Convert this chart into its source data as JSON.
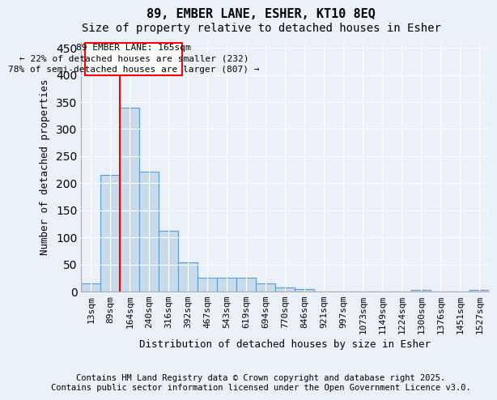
{
  "title": "89, EMBER LANE, ESHER, KT10 8EQ",
  "subtitle": "Size of property relative to detached houses in Esher",
  "xlabel": "Distribution of detached houses by size in Esher",
  "ylabel": "Number of detached properties",
  "categories": [
    "13sqm",
    "89sqm",
    "164sqm",
    "240sqm",
    "316sqm",
    "392sqm",
    "467sqm",
    "543sqm",
    "619sqm",
    "694sqm",
    "770sqm",
    "846sqm",
    "921sqm",
    "997sqm",
    "1073sqm",
    "1149sqm",
    "1224sqm",
    "1300sqm",
    "1376sqm",
    "1451sqm",
    "1527sqm"
  ],
  "values": [
    15,
    215,
    340,
    222,
    112,
    54,
    26,
    25,
    25,
    15,
    7,
    5,
    0,
    0,
    0,
    0,
    0,
    3,
    0,
    0,
    3
  ],
  "bar_color": "#c9daea",
  "bar_edge_color": "#5b9bd5",
  "ylim": [
    0,
    460
  ],
  "yticks": [
    0,
    50,
    100,
    150,
    200,
    250,
    300,
    350,
    400,
    450
  ],
  "red_line_x": 2.0,
  "annotation_text": "89 EMBER LANE: 165sqm\n← 22% of detached houses are smaller (232)\n78% of semi-detached houses are larger (807) →",
  "footer_line1": "Contains HM Land Registry data © Crown copyright and database right 2025.",
  "footer_line2": "Contains public sector information licensed under the Open Government Licence v3.0.",
  "bg_color": "#eaf1f8",
  "plot_bg_color": "#eaf1f8",
  "title_fontsize": 11,
  "subtitle_fontsize": 10,
  "axis_label_fontsize": 9,
  "tick_fontsize": 8,
  "annotation_fontsize": 8,
  "footer_fontsize": 7.5
}
